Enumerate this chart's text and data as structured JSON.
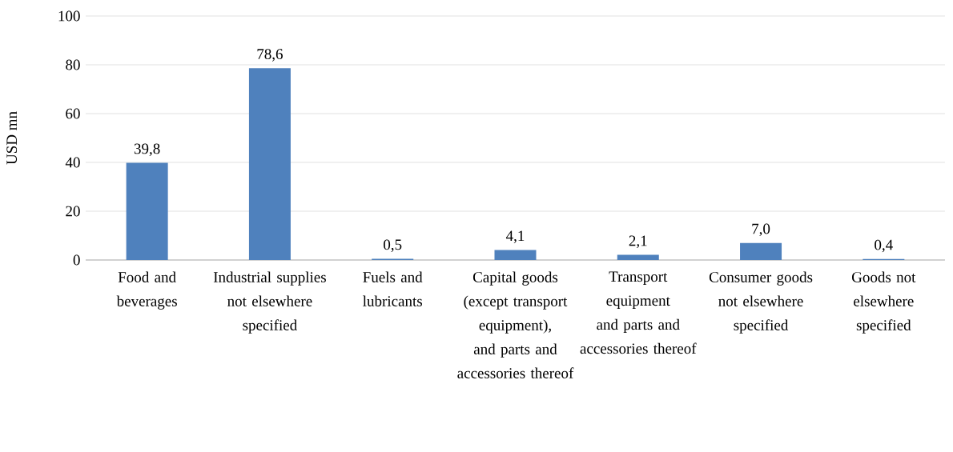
{
  "chart_data": {
    "type": "bar",
    "ylabel": "USD mn",
    "categories": [
      "Food and beverages",
      "Industrial supplies not elsewhere specified",
      "Fuels and lubricants",
      "Capital goods (except transport equipment), and parts and accessories thereof",
      "Transport equipment and parts and accessories thereof",
      "Consumer goods not elsewhere specified",
      "Goods not elsewhere specified"
    ],
    "values": [
      39.8,
      78.6,
      0.5,
      4.1,
      2.1,
      7.0,
      0.4
    ],
    "value_labels": [
      "39,8",
      "78,6",
      "0,5",
      "4,1",
      "2,1",
      "7,0",
      "0,4"
    ],
    "color": "#4f81bd",
    "ylim": [
      0,
      100
    ],
    "yticks": [
      0,
      20,
      40,
      60,
      80,
      100
    ],
    "grid": "y"
  }
}
